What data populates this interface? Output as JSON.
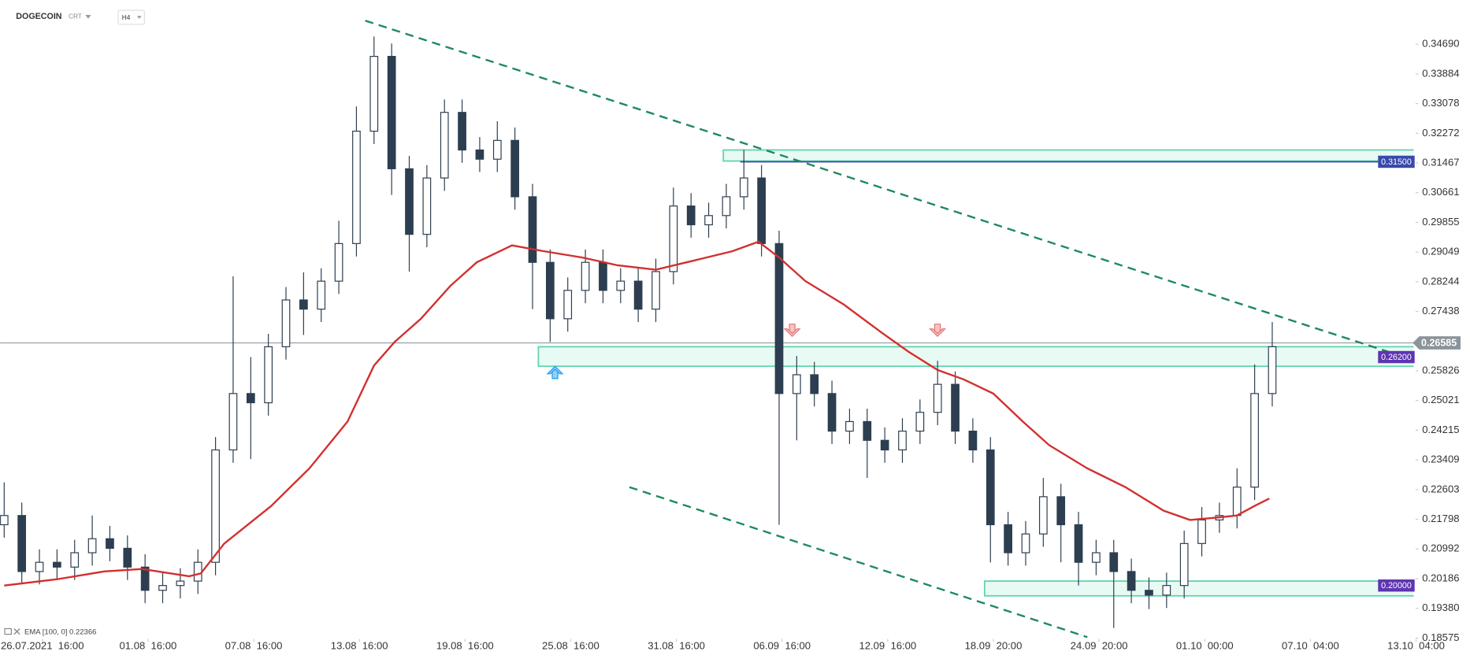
{
  "chart_data": {
    "type": "candlestick",
    "title": "DOGECOIN",
    "instrument_type": "CRT",
    "interval": "H4",
    "color_up": "#ffffff",
    "color_down": "#2c3e50",
    "x": [
      0,
      6,
      12,
      18,
      24,
      30,
      36,
      42,
      48,
      54,
      60,
      66,
      72,
      78,
      84,
      90,
      96,
      102,
      108,
      114,
      120,
      126,
      132,
      138,
      144,
      150,
      156,
      162,
      168,
      174,
      180,
      186,
      192,
      198,
      204,
      210,
      216,
      222,
      228,
      234,
      240,
      246,
      252,
      258,
      264,
      270,
      276,
      282,
      288,
      294,
      300,
      306,
      312,
      318,
      324,
      330,
      336,
      342,
      348,
      354,
      360,
      366,
      372,
      378,
      384,
      390,
      396,
      402,
      408,
      414,
      420,
      426,
      432
    ],
    "open": [
      0.2165,
      0.219,
      0.2038,
      0.2063,
      0.205,
      0.2089,
      0.2127,
      0.2101,
      0.205,
      0.1987,
      0.2,
      0.2012,
      0.2063,
      0.2368,
      0.2521,
      0.2496,
      0.2648,
      0.2775,
      0.275,
      0.2826,
      0.2928,
      0.3233,
      0.3436,
      0.3131,
      0.2953,
      0.3106,
      0.3284,
      0.3182,
      0.3157,
      0.3208,
      0.3055,
      0.2877,
      0.2724,
      0.2801,
      0.2877,
      0.2801,
      0.2826,
      0.275,
      0.2852,
      0.303,
      0.2979,
      0.3004,
      0.3055,
      0.3106,
      0.2928,
      0.2521,
      0.2572,
      0.2521,
      0.2419,
      0.2445,
      0.2394,
      0.2368,
      0.2419,
      0.247,
      0.2546,
      0.2419,
      0.2368,
      0.2165,
      0.2089,
      0.214,
      0.2241,
      0.2165,
      0.2063,
      0.2089,
      0.2038,
      0.1987,
      0.1974,
      0.2,
      0.2114,
      0.2178,
      0.219,
      0.2267,
      0.2521
    ],
    "high": [
      0.228,
      0.2225,
      0.2098,
      0.2098,
      0.2124,
      0.219,
      0.2162,
      0.2136,
      0.2085,
      0.2035,
      0.2047,
      0.2098,
      0.2403,
      0.2839,
      0.262,
      0.2683,
      0.281,
      0.285,
      0.2861,
      0.299,
      0.33,
      0.349,
      0.3471,
      0.3166,
      0.3141,
      0.3319,
      0.3319,
      0.3217,
      0.326,
      0.3243,
      0.309,
      0.2912,
      0.2836,
      0.2912,
      0.2912,
      0.2861,
      0.2861,
      0.2887,
      0.308,
      0.3065,
      0.3039,
      0.309,
      0.3182,
      0.3141,
      0.2963,
      0.2623,
      0.2607,
      0.2556,
      0.248,
      0.248,
      0.2429,
      0.2454,
      0.2505,
      0.261,
      0.2581,
      0.2454,
      0.2403,
      0.22,
      0.2175,
      0.2292,
      0.2276,
      0.22,
      0.2124,
      0.2124,
      0.2073,
      0.2022,
      0.2035,
      0.2149,
      0.2213,
      0.2225,
      0.2318,
      0.26,
      0.2715
    ],
    "low": [
      0.213,
      0.2003,
      0.2003,
      0.2015,
      0.2015,
      0.2054,
      0.2066,
      0.2015,
      0.1952,
      0.1952,
      0.1965,
      0.1977,
      0.2028,
      0.2333,
      0.2343,
      0.2461,
      0.2613,
      0.268,
      0.2715,
      0.2791,
      0.2893,
      0.3198,
      0.306,
      0.2852,
      0.2918,
      0.3071,
      0.3147,
      0.3122,
      0.3122,
      0.302,
      0.275,
      0.2661,
      0.2689,
      0.2766,
      0.2766,
      0.2766,
      0.2715,
      0.2715,
      0.2817,
      0.2944,
      0.2944,
      0.2969,
      0.302,
      0.2893,
      0.2165,
      0.2394,
      0.2486,
      0.2384,
      0.2384,
      0.2292,
      0.2333,
      0.2333,
      0.2384,
      0.2435,
      0.2384,
      0.2333,
      0.2063,
      0.2054,
      0.2054,
      0.2105,
      0.2063,
      0.2,
      0.2028,
      0.1885,
      0.1952,
      0.1936,
      0.1939,
      0.1965,
      0.2079,
      0.2143,
      0.2155,
      0.2232,
      0.2486
    ],
    "close": [
      0.219,
      0.2038,
      0.2063,
      0.205,
      0.2089,
      0.2127,
      0.2101,
      0.205,
      0.1987,
      0.2,
      0.2012,
      0.2063,
      0.2368,
      0.2521,
      0.2496,
      0.2648,
      0.2775,
      0.275,
      0.2826,
      0.2928,
      0.3233,
      0.3436,
      0.3131,
      0.2953,
      0.3106,
      0.3284,
      0.3182,
      0.3157,
      0.3208,
      0.3055,
      0.2877,
      0.2724,
      0.2801,
      0.2877,
      0.2801,
      0.2826,
      0.275,
      0.2852,
      0.303,
      0.2979,
      0.3004,
      0.3055,
      0.3106,
      0.2928,
      0.2521,
      0.2572,
      0.2521,
      0.2419,
      0.2445,
      0.2394,
      0.2368,
      0.2419,
      0.247,
      0.2546,
      0.2419,
      0.2368,
      0.2165,
      0.2089,
      0.214,
      0.2241,
      0.2165,
      0.2063,
      0.2089,
      0.2038,
      0.1987,
      0.1974,
      0.2,
      0.2114,
      0.2178,
      0.219,
      0.2267,
      0.2521,
      0.2648
    ],
    "ema": {
      "label": "EMA [100, 0] 0.22366",
      "color": "#d32f2f",
      "x": [
        0,
        18,
        34,
        47,
        63,
        67,
        75,
        91,
        104,
        117,
        126,
        133,
        142,
        152,
        161,
        173,
        184,
        197,
        209,
        222,
        235,
        248,
        257,
        264,
        273,
        286,
        299,
        308,
        318,
        327,
        337,
        347,
        356,
        369,
        382,
        395,
        404,
        414,
        420,
        426,
        431
      ],
      "values": [
        0.2,
        0.2017,
        0.2038,
        0.2045,
        0.2025,
        0.2033,
        0.2114,
        0.2216,
        0.2318,
        0.2445,
        0.2597,
        0.2661,
        0.2724,
        0.2813,
        0.2877,
        0.2923,
        0.2907,
        0.289,
        0.2869,
        0.2857,
        0.2882,
        0.2907,
        0.2933,
        0.289,
        0.2826,
        0.2763,
        0.2686,
        0.2635,
        0.2585,
        0.2559,
        0.2521,
        0.2445,
        0.2381,
        0.2318,
        0.2267,
        0.2203,
        0.2178,
        0.2185,
        0.219,
        0.2216,
        0.2236
      ]
    },
    "xlim": [
      -1.4,
      492
    ],
    "ylim": [
      0.1855,
      0.3589
    ],
    "xticks": [
      {
        "value": 13,
        "label": "26.07.2021  16:00"
      },
      {
        "value": 49,
        "label": "01.08  16:00"
      },
      {
        "value": 85,
        "label": "07.08  16:00"
      },
      {
        "value": 121,
        "label": "13.08  16:00"
      },
      {
        "value": 157,
        "label": "19.08  16:00"
      },
      {
        "value": 193,
        "label": "25.08  16:00"
      },
      {
        "value": 229,
        "label": "31.08  16:00"
      },
      {
        "value": 265,
        "label": "06.09  16:00"
      },
      {
        "value": 301,
        "label": "12.09  16:00"
      },
      {
        "value": 337,
        "label": "18.09  20:00"
      },
      {
        "value": 373,
        "label": "24.09  20:00"
      },
      {
        "value": 409,
        "label": "01.10  00:00"
      },
      {
        "value": 445,
        "label": "07.10  04:00"
      },
      {
        "value": 481,
        "label": "13.10  04:00"
      }
    ],
    "yticks": [
      {
        "value": 0.3469,
        "label": "0.34690"
      },
      0.33884,
      0.33078,
      0.32272,
      0.31467,
      0.30661,
      0.29855,
      0.29049,
      0.28244,
      0.27438,
      0.25826,
      0.25021,
      0.24215,
      0.23409,
      0.22603,
      0.21798,
      0.20992,
      0.20186,
      {
        "value": 0.1938,
        "label": "0.19380"
      },
      0.18575
    ],
    "trendlines": [
      {
        "x": [
          123,
          481
        ],
        "y": [
          0.3533,
          0.261
        ],
        "color": "#1e8a5a"
      },
      {
        "x": [
          213,
          369
        ],
        "y": [
          0.2267,
          0.186
        ],
        "color": "#1e8a5a"
      }
    ],
    "zones": [
      {
        "x": [
          245,
          481
        ],
        "y": [
          0.3152,
          0.3182
        ]
      },
      {
        "x": [
          182,
          481
        ],
        "y": [
          0.2595,
          0.2648
        ]
      },
      {
        "x": [
          334,
          481
        ],
        "y": [
          0.1972,
          0.2012
        ]
      }
    ],
    "levels": [
      {
        "value": 0.315,
        "label": "0.31500",
        "color": "#3949ab",
        "line": true
      },
      {
        "value": 0.262,
        "label": "0.26200",
        "color": "#5e35b1",
        "line": false
      },
      {
        "value": 0.2,
        "label": "0.20000",
        "color": "#5e35b1",
        "line": false
      }
    ],
    "current_price": 0.26585
  }
}
